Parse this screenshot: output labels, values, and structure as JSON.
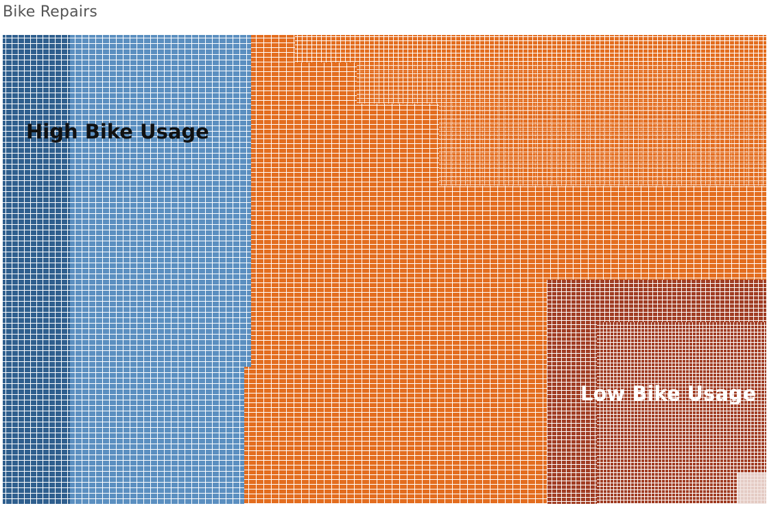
{
  "chart_data": {
    "type": "treemap",
    "title": "Bike Repairs",
    "colors": {
      "dark_blue": "#2f5f8e",
      "light_blue": "#5b8fc0",
      "orange": "#e36d1f",
      "dark_red": "#a03d24",
      "cell_border": "#ffffff"
    },
    "annotations": [
      {
        "text": "High Bike Usage",
        "color": "#111111",
        "placement": "upper-left, on blue region"
      },
      {
        "text": "Low Bike Usage",
        "color": "#ffffff",
        "placement": "lower-right, on dark red region"
      }
    ],
    "regions": [
      {
        "color_key": "dark_blue"
      },
      {
        "color_key": "light_blue"
      },
      {
        "color_key": "orange"
      },
      {
        "color_key": "dark_red"
      }
    ]
  }
}
